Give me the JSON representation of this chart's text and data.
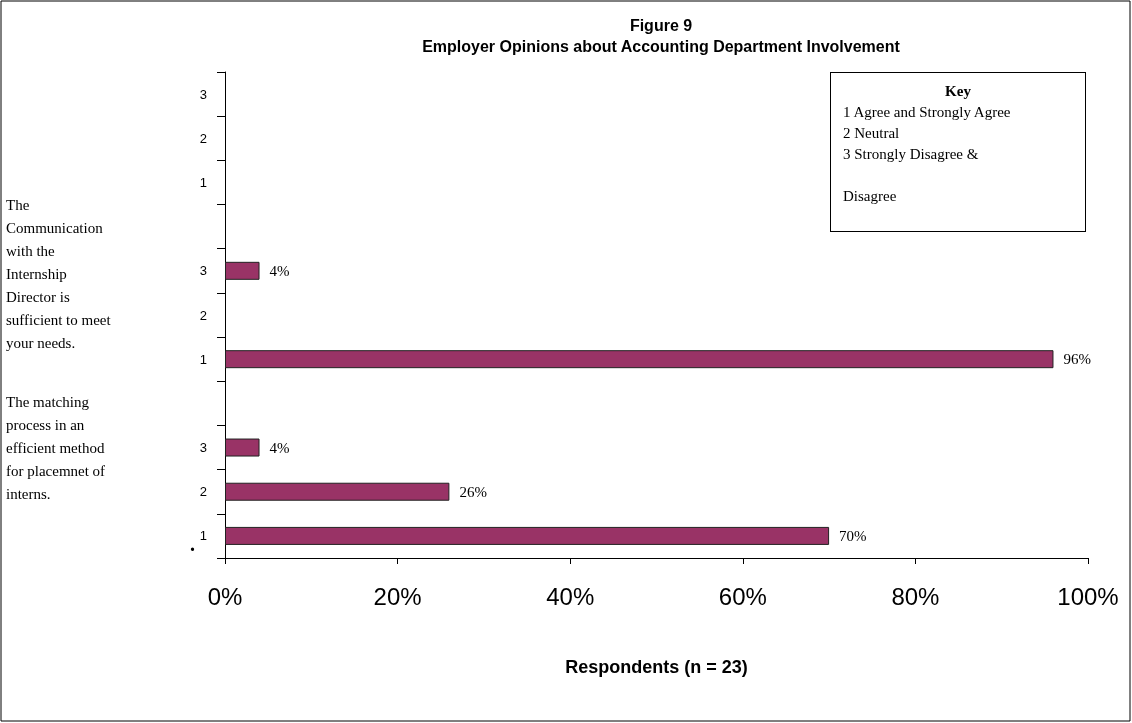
{
  "chart_data": {
    "type": "bar",
    "orientation": "horizontal",
    "title": "Figure 9",
    "subtitle": "Employer Opinions about Accounting Department Involvement",
    "xlabel": "Respondents (n = 23)",
    "categories": [
      "3",
      "2",
      "1",
      null,
      "3",
      "2",
      "1",
      null,
      "3",
      "2",
      "1"
    ],
    "values": [
      null,
      null,
      null,
      null,
      4,
      null,
      96,
      null,
      4,
      26,
      70
    ],
    "value_labels": [
      null,
      null,
      null,
      null,
      "4%",
      null,
      "96%",
      null,
      "4%",
      "26%",
      "70%"
    ],
    "color": "#993366",
    "xlim": [
      0,
      100
    ],
    "xticks": [
      {
        "value": 0,
        "label": "0%"
      },
      {
        "value": 20,
        "label": "20%"
      },
      {
        "value": 40,
        "label": "40%"
      },
      {
        "value": 60,
        "label": "60%"
      },
      {
        "value": 80,
        "label": "80%"
      },
      {
        "value": 100,
        "label": "100%"
      }
    ],
    "grid": false,
    "annotations": [
      "The Communication with the Internship Director is sufficient to meet your needs.",
      "The matching process in an efficient method for placemnet of interns.",
      "Key\n1 Agree and Strongly Agree\n2 Neutral\n3 Strongly Disagree &\n\nDisagree",
      "."
    ]
  }
}
